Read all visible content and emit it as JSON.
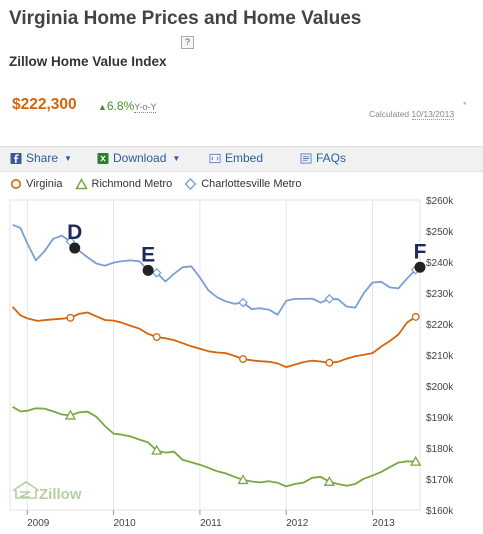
{
  "header": {
    "title": "Virginia Home Prices and Home Values",
    "help_label": "?",
    "subtitle": "Zillow Home Value Index"
  },
  "summary": {
    "price": "$222,300",
    "change": "6.8%",
    "change_label": "Y-o-Y",
    "calculated_label": "Calculated",
    "calculated_date": "10/13/2013",
    "asterisk": "*"
  },
  "toolbar": {
    "share": "Share",
    "download": "Download",
    "embed": "Embed",
    "faqs": "FAQs"
  },
  "colors": {
    "virginia": "#d4650b",
    "richmond": "#7ba73f",
    "charlottesville": "#7a9fd3",
    "marker": "#222222",
    "marker_label": "#1e2a5a"
  },
  "watermark": "Zillow",
  "chart_data": {
    "type": "line",
    "x_start": 2008.8,
    "x_end": 2013.55,
    "ylim": [
      160000,
      260000
    ],
    "y_ticks": [
      160000,
      170000,
      180000,
      190000,
      200000,
      210000,
      220000,
      230000,
      240000,
      250000,
      260000
    ],
    "y_tick_labels": [
      "$160k",
      "$170k",
      "$180k",
      "$190k",
      "$200k",
      "$210k",
      "$220k",
      "$230k",
      "$240k",
      "$250k",
      "$260k"
    ],
    "x_ticks": [
      2009,
      2010,
      2011,
      2012,
      2013
    ],
    "x_tick_labels": [
      "2009",
      "2010",
      "2011",
      "2012",
      "2013"
    ],
    "grid": "vertical",
    "legend": "top-left",
    "series": [
      {
        "name": "Virginia",
        "marker": "circle",
        "color": "#d4650b",
        "x": [
          2008.83,
          2008.92,
          2009.0,
          2009.12,
          2009.25,
          2009.4,
          2009.5,
          2009.6,
          2009.7,
          2009.8,
          2009.9,
          2010.0,
          2010.1,
          2010.2,
          2010.3,
          2010.4,
          2010.5,
          2010.6,
          2010.7,
          2010.8,
          2010.9,
          2011.0,
          2011.1,
          2011.2,
          2011.3,
          2011.4,
          2011.5,
          2011.6,
          2011.7,
          2011.8,
          2011.9,
          2012.0,
          2012.1,
          2012.2,
          2012.3,
          2012.4,
          2012.5,
          2012.6,
          2012.7,
          2012.8,
          2012.9,
          2013.0,
          2013.1,
          2013.2,
          2013.3,
          2013.4,
          2013.5
        ],
        "values": [
          225500,
          222800,
          221800,
          221000,
          221400,
          221700,
          222000,
          223300,
          223700,
          222500,
          221300,
          221100,
          220400,
          219400,
          218500,
          216800,
          215800,
          215400,
          214800,
          213800,
          212800,
          212000,
          211200,
          210800,
          210600,
          209700,
          208700,
          208300,
          208000,
          207800,
          207300,
          206100,
          206900,
          207700,
          208200,
          207900,
          207500,
          207800,
          208800,
          209600,
          210100,
          210600,
          212700,
          214500,
          216600,
          220500,
          222300
        ],
        "marked_x": [
          2009.5,
          2010.5,
          2011.5,
          2012.5,
          2013.5
        ]
      },
      {
        "name": "Richmond Metro",
        "marker": "triangle",
        "color": "#7ba73f",
        "x": [
          2008.83,
          2008.92,
          2009.0,
          2009.1,
          2009.2,
          2009.3,
          2009.4,
          2009.5,
          2009.6,
          2009.7,
          2009.8,
          2009.9,
          2010.0,
          2010.1,
          2010.2,
          2010.3,
          2010.4,
          2010.5,
          2010.6,
          2010.7,
          2010.8,
          2010.9,
          2011.0,
          2011.1,
          2011.2,
          2011.3,
          2011.4,
          2011.5,
          2011.6,
          2011.7,
          2011.8,
          2011.9,
          2012.0,
          2012.1,
          2012.2,
          2012.3,
          2012.4,
          2012.5,
          2012.6,
          2012.7,
          2012.8,
          2012.9,
          2013.0,
          2013.1,
          2013.2,
          2013.3,
          2013.4,
          2013.5
        ],
        "values": [
          193300,
          191800,
          192000,
          192800,
          192700,
          191800,
          190800,
          190500,
          191500,
          191700,
          190100,
          187100,
          184600,
          184300,
          183700,
          182700,
          181800,
          179200,
          178500,
          178800,
          176200,
          175400,
          174600,
          173600,
          172500,
          171800,
          170700,
          169700,
          169200,
          168900,
          169300,
          168800,
          167600,
          168400,
          168800,
          170400,
          170700,
          169100,
          168400,
          167800,
          168400,
          170100,
          171100,
          172300,
          173800,
          175300,
          175700,
          175600
        ],
        "marked_x": [
          2009.5,
          2010.5,
          2011.5,
          2012.5,
          2013.5
        ]
      },
      {
        "name": "Charlottesville Metro",
        "marker": "diamond",
        "color": "#7a9fd3",
        "x": [
          2008.83,
          2008.92,
          2009.0,
          2009.1,
          2009.2,
          2009.3,
          2009.4,
          2009.5,
          2009.6,
          2009.7,
          2009.8,
          2009.9,
          2010.0,
          2010.1,
          2010.2,
          2010.3,
          2010.4,
          2010.5,
          2010.6,
          2010.7,
          2010.8,
          2010.9,
          2011.0,
          2011.1,
          2011.2,
          2011.3,
          2011.4,
          2011.5,
          2011.6,
          2011.7,
          2011.8,
          2011.9,
          2012.0,
          2012.1,
          2012.2,
          2012.3,
          2012.4,
          2012.5,
          2012.6,
          2012.7,
          2012.8,
          2012.9,
          2013.0,
          2013.1,
          2013.2,
          2013.3,
          2013.4,
          2013.5
        ],
        "values": [
          252000,
          251000,
          246000,
          240500,
          243500,
          247500,
          248500,
          246600,
          243600,
          241500,
          239500,
          238800,
          239800,
          240300,
          240500,
          240200,
          237300,
          236500,
          233700,
          236200,
          238300,
          238600,
          235000,
          230800,
          228600,
          227300,
          226500,
          226900,
          224800,
          225100,
          224600,
          223000,
          227500,
          228100,
          228100,
          228200,
          226900,
          228100,
          228000,
          225600,
          225300,
          230000,
          233400,
          233600,
          231800,
          231500,
          234700,
          237500
        ],
        "marked_x": [
          2009.5,
          2010.5,
          2011.5,
          2012.5,
          2013.5
        ]
      }
    ],
    "annotations": [
      {
        "label": "D",
        "x": 2009.55,
        "y": 244500,
        "series": "Charlottesville Metro"
      },
      {
        "label": "E",
        "x": 2010.4,
        "y": 237300,
        "series": "Charlottesville Metro"
      },
      {
        "label": "F",
        "x": 2013.55,
        "y": 238300,
        "series": "Charlottesville Metro"
      }
    ]
  }
}
